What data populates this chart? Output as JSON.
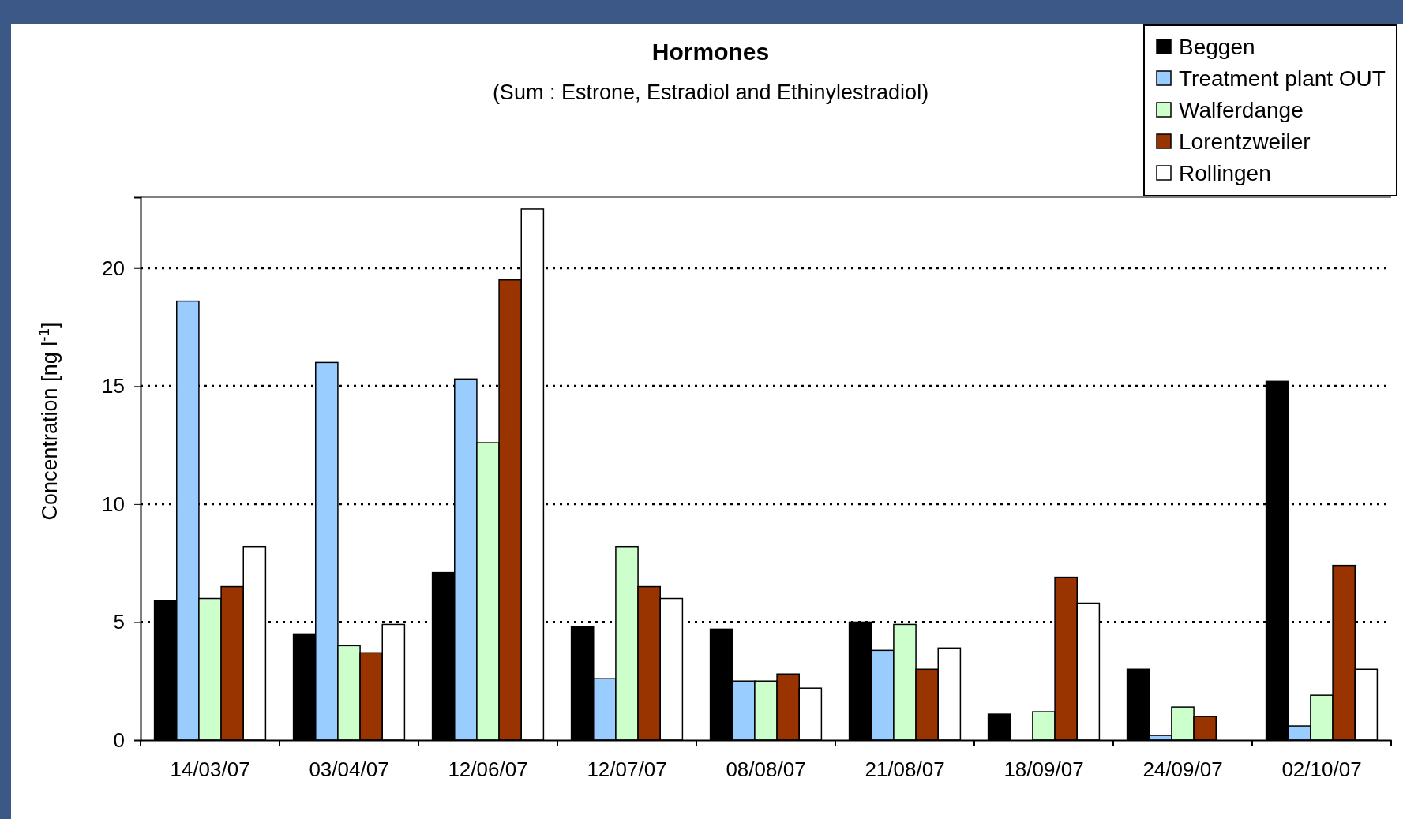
{
  "chart_data": {
    "type": "bar",
    "title": "Hormones",
    "subtitle": "(Sum : Estrone, Estradiol and Ethinylestradiol)",
    "ylabel": "Concentration [ng l$^{-1}$]",
    "categories": [
      "14/03/07",
      "03/04/07",
      "12/06/07",
      "12/07/07",
      "08/08/07",
      "21/08/07",
      "18/09/07",
      "24/09/07",
      "02/10/07"
    ],
    "series": [
      {
        "name": "Beggen",
        "color": "#000000",
        "values": [
          5.9,
          4.5,
          7.1,
          4.8,
          4.7,
          5.0,
          1.1,
          3.0,
          15.2
        ]
      },
      {
        "name": "Treatment plant OUT",
        "color": "#99ccff",
        "values": [
          18.6,
          16.0,
          15.3,
          2.6,
          2.5,
          3.8,
          null,
          0.2,
          0.6
        ]
      },
      {
        "name": "Walferdange",
        "color": "#ccffcc",
        "values": [
          6.0,
          4.0,
          12.6,
          8.2,
          2.5,
          4.9,
          1.2,
          1.4,
          1.9
        ]
      },
      {
        "name": "Lorentzweiler",
        "color": "#993300",
        "values": [
          6.5,
          3.7,
          19.5,
          6.5,
          2.8,
          3.0,
          6.9,
          1.0,
          7.4
        ]
      },
      {
        "name": "Rollingen",
        "color": "#ffffff",
        "values": [
          8.2,
          4.9,
          22.5,
          6.0,
          2.2,
          3.9,
          5.8,
          null,
          3.0
        ]
      }
    ],
    "ylim": [
      0,
      23
    ],
    "yticks": [
      0,
      5,
      10,
      15,
      20
    ],
    "grid": "y",
    "legend": "top right"
  }
}
